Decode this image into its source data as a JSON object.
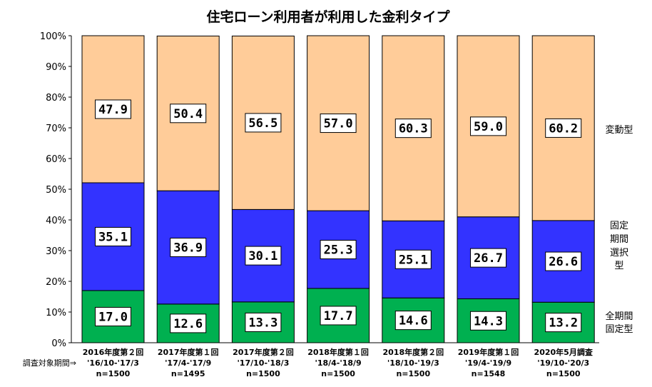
{
  "chart_data": {
    "type": "bar",
    "stacked": true,
    "title": "住宅ローン利用者が利用した金利タイプ",
    "period_prefix": "調査対象期間⇒",
    "categories": [
      {
        "survey": "2016年度第２回",
        "period": "'16/10-'17/3",
        "n": "n=1500"
      },
      {
        "survey": "2017年度第１回",
        "period": "'17/4-'17/9",
        "n": "n=1495"
      },
      {
        "survey": "2017年度第２回",
        "period": "'17/10-'18/3",
        "n": "n=1500"
      },
      {
        "survey": "2018年度第１回",
        "period": "'18/4-'18/9",
        "n": "n=1500"
      },
      {
        "survey": "2018年度第２回",
        "period": "'18/10-'19/3",
        "n": "n=1500"
      },
      {
        "survey": "2019年度第１回",
        "period": "'19/4-'19/9",
        "n": "n=1548"
      },
      {
        "survey": "2020年5月調査",
        "period": "'19/10-'20/3",
        "n": "n=1500"
      }
    ],
    "series": [
      {
        "name": "全期間固定型",
        "legend_lines": [
          "全期間",
          "固定型"
        ],
        "color": "#00b050",
        "values": [
          17.0,
          12.6,
          13.3,
          17.7,
          14.6,
          14.3,
          13.2
        ]
      },
      {
        "name": "固定期間選択型",
        "legend_lines": [
          "固定",
          "期間",
          "選択",
          "型"
        ],
        "color": "#3333ff",
        "values": [
          35.1,
          36.9,
          30.1,
          25.3,
          25.1,
          26.7,
          26.6
        ]
      },
      {
        "name": "変動型",
        "legend_lines": [
          "変動型"
        ],
        "color": "#ffcc99",
        "values": [
          47.9,
          50.4,
          56.5,
          57.0,
          60.3,
          59.0,
          60.2
        ]
      }
    ],
    "yticks": [
      "0%",
      "10%",
      "20%",
      "30%",
      "40%",
      "50%",
      "60%",
      "70%",
      "80%",
      "90%",
      "100%"
    ],
    "ylim": [
      0,
      100
    ],
    "grid": false,
    "legend": "right"
  }
}
